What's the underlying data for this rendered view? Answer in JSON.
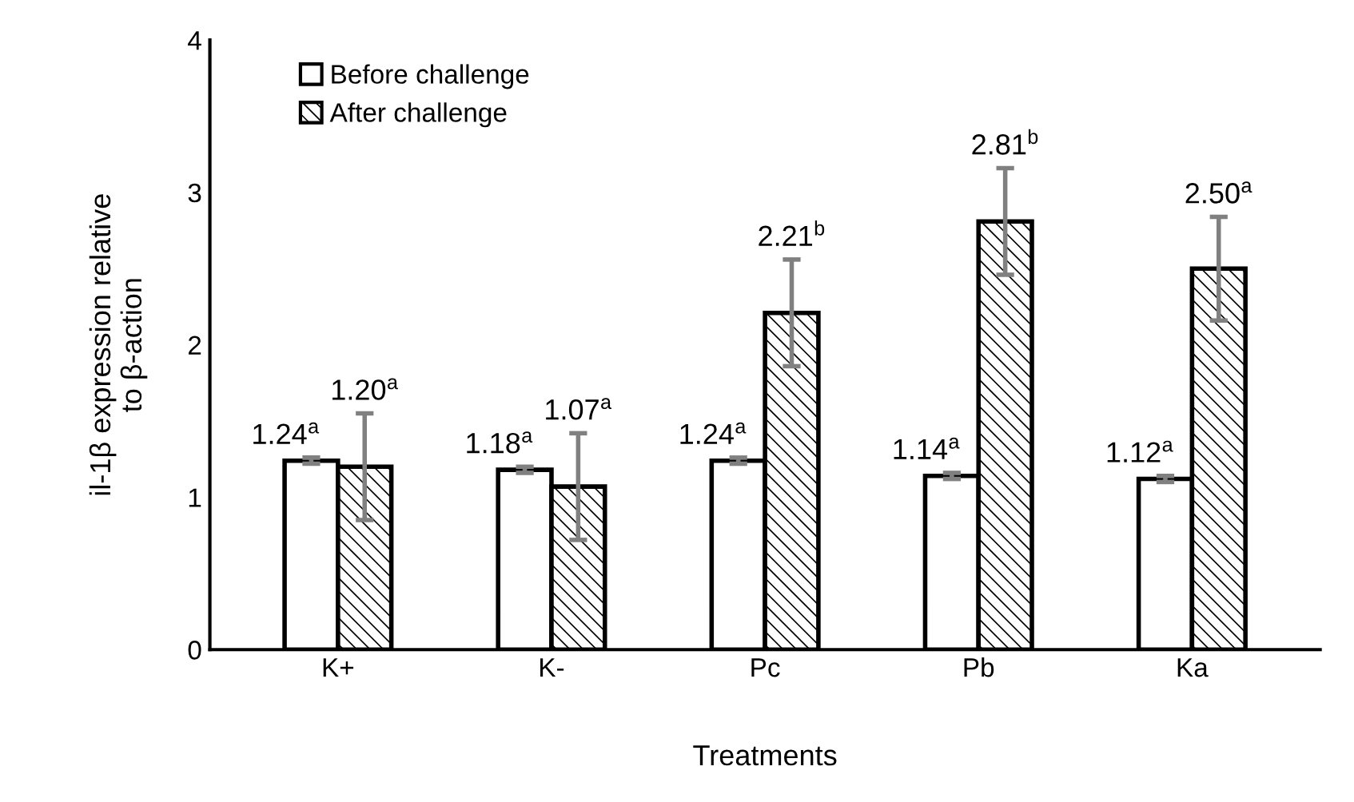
{
  "chart_data": {
    "type": "bar",
    "xlabel": "Treatments",
    "ylabel": "il-1β expression relative\nto β-action",
    "categories": [
      "K+",
      "K-",
      "Pc",
      "Pb",
      "Ka"
    ],
    "series": [
      {
        "name": "Before challenge",
        "color": "#ffffff",
        "values": [
          1.24,
          1.18,
          1.24,
          1.14,
          1.12
        ],
        "errors": [
          0.02,
          0.02,
          0.02,
          0.02,
          0.02
        ],
        "value_labels": [
          "1.24$^{a}$",
          "1.18$^{a}$",
          "1.24$^{a}$",
          "1.14$^{a}$",
          "1.12$^{a}$"
        ]
      },
      {
        "name": "After challenge",
        "color": "#000000",
        "values": [
          1.2,
          1.07,
          2.21,
          2.81,
          2.5
        ],
        "errors": [
          0.35,
          0.35,
          0.35,
          0.35,
          0.34
        ],
        "value_labels": [
          "1.20$^{a}$",
          "1.07$^{a}$",
          "2.21$^{b}$",
          "2.81$^{b}$",
          "2.50$^{a}$"
        ]
      }
    ],
    "ylim": [
      0,
      4
    ],
    "yticks": [
      0,
      1,
      2,
      3,
      4
    ],
    "grid": false,
    "legend": "top left"
  }
}
